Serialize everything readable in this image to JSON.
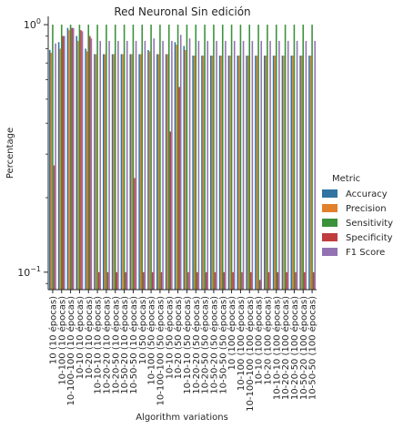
{
  "chart_data": {
    "type": "bar",
    "title": "Red Neuronal Sin edición",
    "xlabel": "Algorithm variations",
    "ylabel": "Percentage",
    "yscale": "log",
    "ylim": [
      0.085,
      1.08
    ],
    "yticks": [
      {
        "value": 1.0,
        "label": "10^0"
      },
      {
        "value": 0.1,
        "label": "10^-1"
      }
    ],
    "grid": false,
    "legend_position": "right",
    "legend": {
      "title": "Metric",
      "entries": [
        "Accuracy",
        "Precision",
        "Sensitivity",
        "Specificity",
        "F1 Score"
      ]
    },
    "categories": [
      "10 (10 épocas)",
      "10-100 (10 épocas)",
      "10-100-100 (10 épocas)",
      "10-10 (10 épocas)",
      "10-20 (10 épocas)",
      "10-10-10 (10 épocas)",
      "10-20-20 (10 épocas)",
      "10-20-50 (10 épocas)",
      "10-50-20 (10 épocas)",
      "10-50-50 (10 épocas)",
      "10 (50 épocas)",
      "10-100 (50 épocas)",
      "10-100-100 (50 épocas)",
      "10-10 (50 épocas)",
      "10-20 (50 épocas)",
      "10-10-10 (50 épocas)",
      "10-20-20 (50 épocas)",
      "10-20-50 (50 épocas)",
      "10-50-20 (50 épocas)",
      "10-50-50 (50 épocas)",
      "10 (100 épocas)",
      "10-100 (100 épocas)",
      "10-100-100 (100 épocas)",
      "10-10 (100 épocas)",
      "10-20 (100 épocas)",
      "10-10-10 (100 épocas)",
      "10-20-20 (100 épocas)",
      "10-20-50 (100 épocas)",
      "10-50-20 (100 épocas)",
      "10-50-50 (100 épocas)"
    ],
    "series": [
      {
        "name": "Accuracy",
        "color": "#3274a1",
        "values": [
          0.79,
          0.85,
          0.97,
          0.9,
          0.8,
          0.76,
          0.76,
          0.76,
          0.76,
          0.76,
          0.76,
          0.79,
          0.76,
          0.76,
          0.85,
          0.82,
          0.75,
          0.75,
          0.75,
          0.75,
          0.75,
          0.75,
          0.75,
          0.75,
          0.75,
          0.75,
          0.75,
          0.75,
          0.75,
          0.75
        ]
      },
      {
        "name": "Precision",
        "color": "#e1812c",
        "values": [
          0.77,
          0.8,
          0.95,
          0.86,
          0.78,
          0.76,
          0.76,
          0.76,
          0.76,
          0.76,
          0.76,
          0.78,
          0.76,
          0.76,
          0.83,
          0.79,
          0.75,
          0.75,
          0.75,
          0.75,
          0.75,
          0.75,
          0.75,
          0.75,
          0.75,
          0.75,
          0.75,
          0.75,
          0.75,
          0.75
        ]
      },
      {
        "name": "Sensitivity",
        "color": "#3a923a",
        "values": [
          1.0,
          1.0,
          1.0,
          1.0,
          1.0,
          1.0,
          1.0,
          1.0,
          1.0,
          1.0,
          1.0,
          1.0,
          1.0,
          1.0,
          1.0,
          1.0,
          1.0,
          1.0,
          1.0,
          1.0,
          1.0,
          1.0,
          1.0,
          1.0,
          1.0,
          1.0,
          1.0,
          1.0,
          1.0,
          1.0
        ]
      },
      {
        "name": "Specificity",
        "color": "#c03d3e",
        "values": [
          0.27,
          0.9,
          0.97,
          0.95,
          0.9,
          0.1,
          0.1,
          0.1,
          0.1,
          0.24,
          0.1,
          0.1,
          0.1,
          0.37,
          0.56,
          0.1,
          0.1,
          0.1,
          0.1,
          0.1,
          0.1,
          0.1,
          0.1,
          0.093,
          0.1,
          0.1,
          0.1,
          0.1,
          0.1,
          0.1
        ]
      },
      {
        "name": "F1 Score",
        "color": "#9372b2",
        "values": [
          0.84,
          0.9,
          0.97,
          0.94,
          0.88,
          0.86,
          0.86,
          0.86,
          0.86,
          0.86,
          0.86,
          0.88,
          0.86,
          0.86,
          0.91,
          0.88,
          0.86,
          0.86,
          0.86,
          0.86,
          0.86,
          0.86,
          0.86,
          0.86,
          0.86,
          0.86,
          0.86,
          0.86,
          0.86,
          0.86
        ]
      }
    ]
  }
}
